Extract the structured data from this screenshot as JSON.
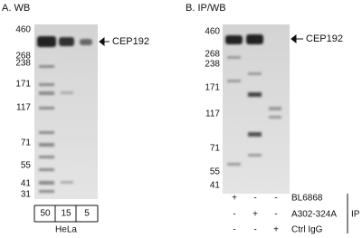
{
  "panels": [
    {
      "title": "A. WB",
      "markers": [
        "460",
        "268",
        "238",
        "171",
        "117",
        "71",
        "55",
        "41",
        "31"
      ],
      "target": "CEP192",
      "lanes": [
        "50",
        "15",
        "5"
      ],
      "sample": "HeLa"
    },
    {
      "title": "B. IP/WB",
      "markers": [
        "460",
        "268",
        "238",
        "171",
        "117",
        "71",
        "55",
        "41"
      ],
      "target": "CEP192",
      "rows": [
        {
          "label": "BL6868",
          "signs": [
            "+",
            "-",
            "-"
          ]
        },
        {
          "label": "A302-324A",
          "signs": [
            "-",
            "+",
            "-"
          ]
        },
        {
          "label": "Ctrl IgG",
          "signs": [
            "-",
            "-",
            "+"
          ]
        }
      ],
      "group": "IP"
    }
  ]
}
